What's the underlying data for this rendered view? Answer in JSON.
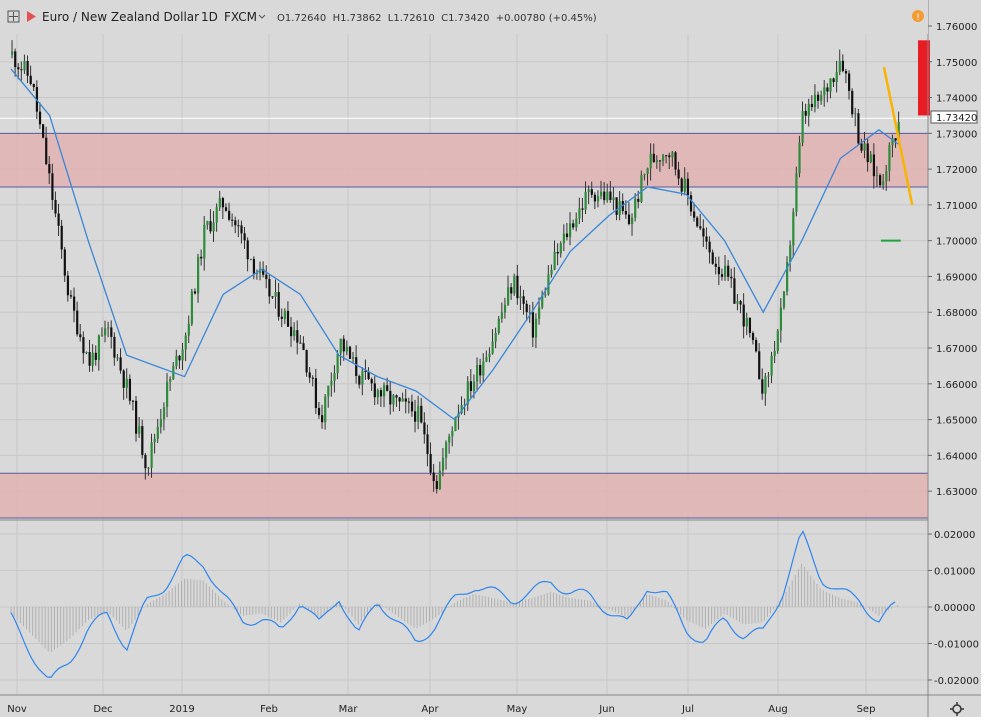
{
  "header": {
    "symbol": "Euro / New Zealand Dollar",
    "interval": "1D",
    "exchange": "FXCM",
    "ohlc": "O1.72640  H1.73862  L1.72610  C1.73420  +0.00780 (+0.45%)"
  },
  "price_label": "1.73420",
  "colors": {
    "background": "#d9d9d9",
    "zone_fill": "#e0b4b4",
    "zone_line": "#5a5aa0",
    "ma_line": "#3a86d6",
    "macd_line": "#2f86ee",
    "up_candle": "#2e8b3a",
    "down_candle": "#111111",
    "annotation_red": "#e81c24",
    "annotation_orange": "#f9b400",
    "annotation_green": "#1aa43a"
  },
  "chart_data": [
    {
      "type": "candlestick",
      "title": "Euro / New Zealand Dollar",
      "x_ticks": [
        "Nov",
        "Dec",
        "2019",
        "Feb",
        "Mar",
        "Apr",
        "May",
        "Jun",
        "Jul",
        "Aug",
        "Sep"
      ],
      "y_ticks": [
        "1.76000",
        "1.75000",
        "1.74000",
        "1.73000",
        "1.72000",
        "1.71000",
        "1.70000",
        "1.69000",
        "1.68000",
        "1.67000",
        "1.66000",
        "1.65000",
        "1.64000",
        "1.63000"
      ],
      "ylim": [
        1.6225,
        1.765
      ],
      "grid": true,
      "last_close": 1.7342,
      "series": [
        {
          "name": "EURNZD",
          "close_path": [
            [
              "2018-10-29",
              1.752
            ],
            [
              "2018-11-05",
              1.745
            ],
            [
              "2018-11-12",
              1.715
            ],
            [
              "2018-11-19",
              1.683
            ],
            [
              "2018-11-26",
              1.666
            ],
            [
              "2018-12-03",
              1.675
            ],
            [
              "2018-12-10",
              1.658
            ],
            [
              "2018-12-17",
              1.637
            ],
            [
              "2018-12-24",
              1.658
            ],
            [
              "2018-12-31",
              1.674
            ],
            [
              "2019-01-07",
              1.703
            ],
            [
              "2019-01-14",
              1.711
            ],
            [
              "2019-01-21",
              1.7
            ],
            [
              "2019-01-28",
              1.688
            ],
            [
              "2019-02-04",
              1.68
            ],
            [
              "2019-02-11",
              1.672
            ],
            [
              "2019-02-18",
              1.65
            ],
            [
              "2019-02-25",
              1.672
            ],
            [
              "2019-03-04",
              1.662
            ],
            [
              "2019-03-11",
              1.658
            ],
            [
              "2019-03-18",
              1.654
            ],
            [
              "2019-03-25",
              1.652
            ],
            [
              "2019-04-01",
              1.632
            ],
            [
              "2019-04-08",
              1.652
            ],
            [
              "2019-04-15",
              1.662
            ],
            [
              "2019-04-22",
              1.674
            ],
            [
              "2019-04-29",
              1.689
            ],
            [
              "2019-05-06",
              1.675
            ],
            [
              "2019-05-13",
              1.693
            ],
            [
              "2019-05-20",
              1.705
            ],
            [
              "2019-05-27",
              1.714
            ],
            [
              "2019-06-03",
              1.712
            ],
            [
              "2019-06-10",
              1.705
            ],
            [
              "2019-06-17",
              1.722
            ],
            [
              "2019-06-24",
              1.726
            ],
            [
              "2019-07-01",
              1.713
            ],
            [
              "2019-07-08",
              1.698
            ],
            [
              "2019-07-15",
              1.69
            ],
            [
              "2019-07-22",
              1.678
            ],
            [
              "2019-07-29",
              1.658
            ],
            [
              "2019-08-05",
              1.682
            ],
            [
              "2019-08-12",
              1.735
            ],
            [
              "2019-08-19",
              1.74
            ],
            [
              "2019-08-26",
              1.752
            ],
            [
              "2019-09-02",
              1.727
            ],
            [
              "2019-09-09",
              1.716
            ],
            [
              "2019-09-16",
              1.734
            ]
          ]
        }
      ],
      "moving_average": [
        [
          "2018-10-29",
          1.748
        ],
        [
          "2018-11-12",
          1.735
        ],
        [
          "2018-11-26",
          1.7
        ],
        [
          "2018-12-10",
          1.668
        ],
        [
          "2018-12-31",
          1.662
        ],
        [
          "2019-01-14",
          1.685
        ],
        [
          "2019-01-28",
          1.692
        ],
        [
          "2019-02-11",
          1.685
        ],
        [
          "2019-02-25",
          1.668
        ],
        [
          "2019-03-11",
          1.662
        ],
        [
          "2019-03-25",
          1.658
        ],
        [
          "2019-04-08",
          1.65
        ],
        [
          "2019-04-22",
          1.664
        ],
        [
          "2019-05-06",
          1.68
        ],
        [
          "2019-05-20",
          1.697
        ],
        [
          "2019-06-03",
          1.707
        ],
        [
          "2019-06-17",
          1.715
        ],
        [
          "2019-07-01",
          1.713
        ],
        [
          "2019-07-15",
          1.7
        ],
        [
          "2019-07-29",
          1.68
        ],
        [
          "2019-08-12",
          1.7
        ],
        [
          "2019-08-26",
          1.723
        ],
        [
          "2019-09-09",
          1.731
        ],
        [
          "2019-09-16",
          1.727
        ]
      ],
      "zones": [
        {
          "from": 1.715,
          "to": 1.73
        },
        {
          "from": 1.6225,
          "to": 1.635
        }
      ]
    },
    {
      "type": "line",
      "y_ticks": [
        "0.02000",
        "0.01000",
        "0.00000",
        "-0.01000",
        "-0.02000"
      ],
      "ylim": [
        -0.0225,
        0.0245
      ],
      "series": [
        {
          "values": [
            [
              "2018-10-29",
              -0.003
            ],
            [
              "2018-11-05",
              -0.012
            ],
            [
              "2018-11-12",
              -0.021
            ],
            [
              "2018-11-19",
              -0.015
            ],
            [
              "2018-11-26",
              -0.006
            ],
            [
              "2018-12-03",
              -0.002
            ],
            [
              "2018-12-10",
              -0.011
            ],
            [
              "2018-12-17",
              0.001
            ],
            [
              "2018-12-24",
              0.006
            ],
            [
              "2018-12-31",
              0.013
            ],
            [
              "2019-01-07",
              0.012
            ],
            [
              "2019-01-14",
              0.003
            ],
            [
              "2019-01-21",
              -0.004
            ],
            [
              "2019-01-28",
              -0.003
            ],
            [
              "2019-02-04",
              -0.007
            ],
            [
              "2019-02-11",
              0.002
            ],
            [
              "2019-02-18",
              -0.005
            ],
            [
              "2019-02-25",
              0.003
            ],
            [
              "2019-03-04",
              -0.008
            ],
            [
              "2019-03-11",
              0.002
            ],
            [
              "2019-03-18",
              -0.004
            ],
            [
              "2019-03-25",
              -0.01
            ],
            [
              "2019-04-01",
              -0.005
            ],
            [
              "2019-04-08",
              0.002
            ],
            [
              "2019-04-15",
              0.006
            ],
            [
              "2019-04-22",
              0.004
            ],
            [
              "2019-04-29",
              0.002
            ],
            [
              "2019-05-06",
              0.004
            ],
            [
              "2019-05-13",
              0.007
            ],
            [
              "2019-05-20",
              0.004
            ],
            [
              "2019-05-27",
              0.003
            ],
            [
              "2019-06-03",
              -0.001
            ],
            [
              "2019-06-10",
              -0.005
            ],
            [
              "2019-06-17",
              0.006
            ],
            [
              "2019-06-24",
              0.003
            ],
            [
              "2019-07-01",
              -0.006
            ],
            [
              "2019-07-08",
              -0.01
            ],
            [
              "2019-07-15",
              -0.003
            ],
            [
              "2019-07-22",
              -0.008
            ],
            [
              "2019-07-29",
              -0.007
            ],
            [
              "2019-08-05",
              0.004
            ],
            [
              "2019-08-12",
              0.02
            ],
            [
              "2019-08-19",
              0.008
            ],
            [
              "2019-08-26",
              0.004
            ],
            [
              "2019-09-02",
              0.002
            ],
            [
              "2019-09-09",
              -0.004
            ],
            [
              "2019-09-16",
              0.001
            ]
          ]
        }
      ]
    }
  ],
  "annotations": {
    "red_box": {
      "from": 1.735,
      "to": 1.756
    },
    "orange_line": {
      "from": [
        "2019-09-09",
        1.7485
      ],
      "to": [
        "2019-09-20",
        1.71
      ]
    },
    "green_line": {
      "from": [
        "2019-09-09",
        1.7
      ],
      "to": [
        "2019-09-14",
        1.7
      ]
    }
  }
}
